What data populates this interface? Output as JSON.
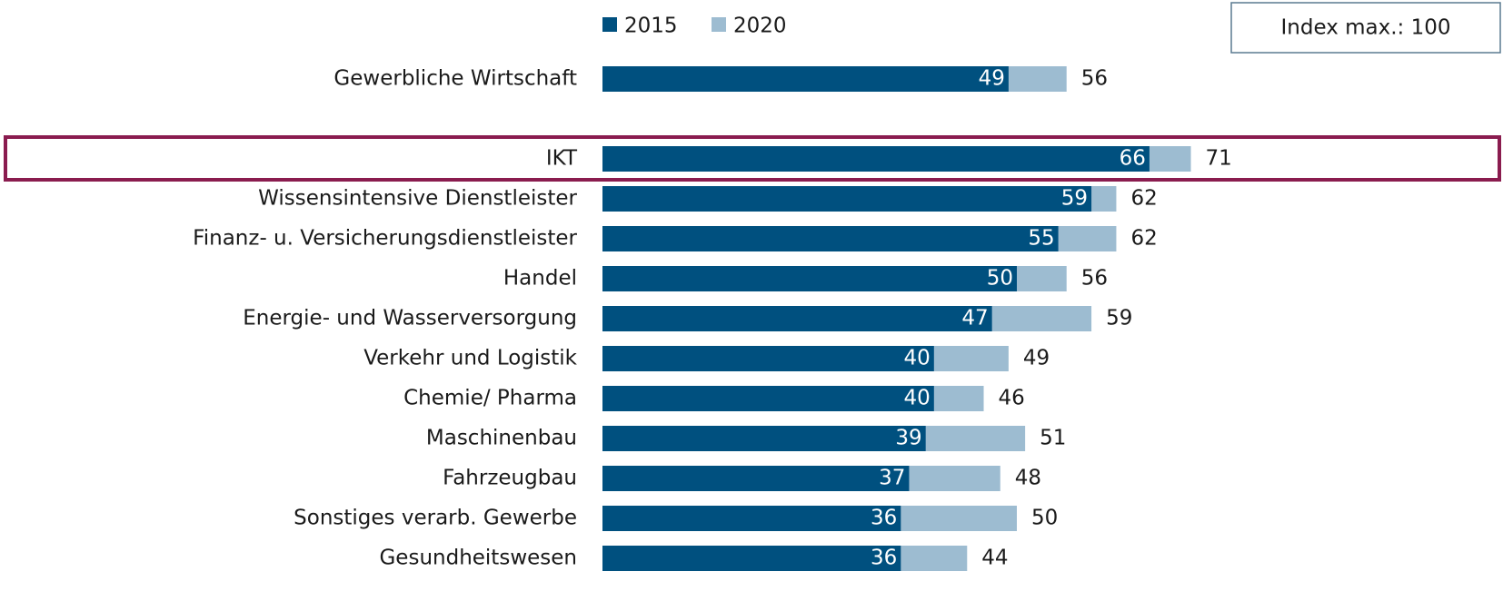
{
  "chart_data": {
    "type": "bar",
    "orientation": "horizontal",
    "overlap": true,
    "annotation": "Index max.: 100",
    "categories": [
      "Gewerbliche Wirtschaft",
      "IKT",
      "Wissensintensive Dienstleister",
      "Finanz- u. Versicherungsdienstleister",
      "Handel",
      "Energie- und Wasserversorgung",
      "Verkehr und Logistik",
      "Chemie/ Pharma",
      "Maschinenbau",
      "Fahrzeugbau",
      "Sonstiges verarb. Gewerbe",
      "Gesundheitswesen"
    ],
    "series": [
      {
        "name": "2020",
        "color": "#9dbcd1",
        "values": [
          56,
          71,
          62,
          62,
          56,
          59,
          49,
          46,
          51,
          48,
          50,
          44
        ]
      },
      {
        "name": "2015",
        "color": "#00507f",
        "values": [
          49,
          66,
          59,
          55,
          50,
          47,
          40,
          40,
          39,
          37,
          36,
          36
        ]
      }
    ],
    "legend_order": [
      1,
      0
    ],
    "xlim": [
      0,
      100
    ]
  }
}
